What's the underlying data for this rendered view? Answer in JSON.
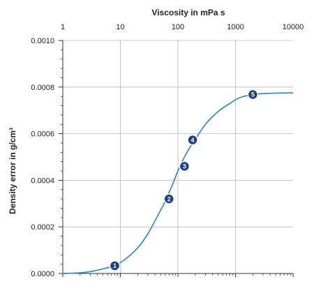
{
  "chart_data": {
    "type": "line",
    "title": "",
    "xlabel": "Viscosity in mPa s",
    "ylabel": "Density error in g/cm³",
    "x_scale": "log",
    "xlim": [
      1,
      10000
    ],
    "ylim": [
      0,
      0.001
    ],
    "x_ticks": [
      {
        "value": 1,
        "label": "1"
      },
      {
        "value": 10,
        "label": "10"
      },
      {
        "value": 100,
        "label": "100"
      },
      {
        "value": 1000,
        "label": "1000"
      },
      {
        "value": 10000,
        "label": "10000"
      }
    ],
    "y_ticks": [
      {
        "value": 0,
        "label": "0.0000"
      },
      {
        "value": 0.0002,
        "label": "0.0002"
      },
      {
        "value": 0.0004,
        "label": "0.0004"
      },
      {
        "value": 0.0006,
        "label": "0.0006"
      },
      {
        "value": 0.0008,
        "label": "0.0008"
      },
      {
        "value": 0.001,
        "label": "0.0010"
      }
    ],
    "grid": true,
    "series": [
      {
        "x": [
          1,
          2,
          3,
          5,
          8,
          12,
          20,
          30,
          45,
          60,
          80,
          100,
          130,
          170,
          200,
          300,
          500,
          800,
          1200,
          2000,
          3000,
          5000,
          10000
        ],
        "y": [
          0.0,
          3e-06,
          8e-06,
          2e-05,
          3.4e-05,
          6e-05,
          0.00011,
          0.00017,
          0.00025,
          0.00031,
          0.00038,
          0.00044,
          0.0005,
          0.00055,
          0.000575,
          0.00064,
          0.000695,
          0.00073,
          0.000755,
          0.000768,
          0.000772,
          0.000774,
          0.000775
        ]
      }
    ],
    "markers": [
      {
        "label": "1",
        "x": 8,
        "y": 3.3e-05
      },
      {
        "label": "2",
        "x": 70,
        "y": 0.00032
      },
      {
        "label": "3",
        "x": 130,
        "y": 0.00046
      },
      {
        "label": "4",
        "x": 180,
        "y": 0.000573
      },
      {
        "label": "5",
        "x": 2000,
        "y": 0.000768
      }
    ]
  },
  "colors": {
    "curve": "#3a8ecf",
    "marker": "#1e3f86",
    "marker_outline": "#ffffff"
  }
}
